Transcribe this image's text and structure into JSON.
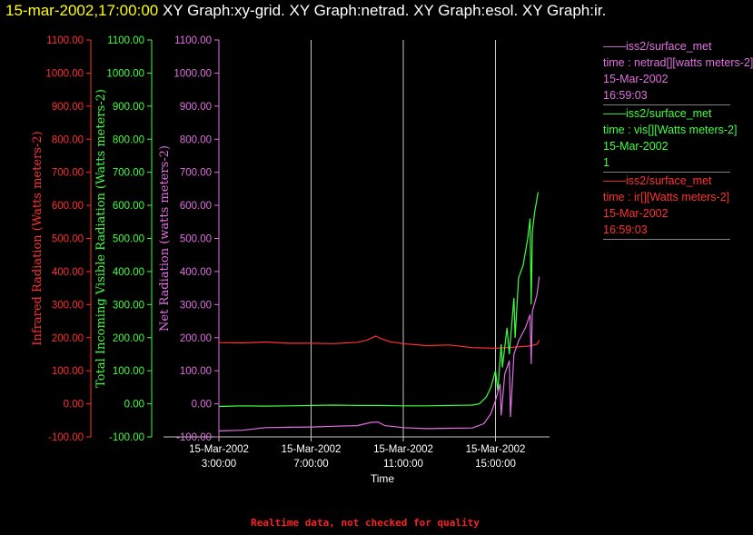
{
  "title": {
    "timestamp": "15-mar-2002,17:00:00",
    "graphs": "XY Graph:xy-grid.  XY Graph:netrad.  XY Graph:esol.  XY Graph:ir."
  },
  "legend": [
    {
      "source": "iss2/surface_met",
      "var": "time : netrad[][watts meters-2]",
      "date": "15-Mar-2002",
      "time": "16:59:03",
      "color": "#e070e0"
    },
    {
      "source": "iss2/surface_met",
      "var": "time : vis[][Watts meters-2]",
      "date": "15-Mar-2002",
      "time": "1",
      "color": "#40ff40"
    },
    {
      "source": "iss2/surface_met",
      "var": "time : ir[][Watts meters-2]",
      "date": "15-Mar-2002",
      "time": "16:59:03",
      "color": "#ff3030"
    }
  ],
  "footer": "Realtime data, not checked for quality",
  "chart_data": {
    "type": "line",
    "xlabel": "Time",
    "x_ticks": [
      {
        "date": "15-Mar-2002",
        "time": "3:00:00",
        "hour": 3
      },
      {
        "date": "15-Mar-2002",
        "time": "7:00:00",
        "hour": 7
      },
      {
        "date": "15-Mar-2002",
        "time": "11:00:00",
        "hour": 11
      },
      {
        "date": "15-Mar-2002",
        "time": "15:00:00",
        "hour": 15
      }
    ],
    "xlim_hours": [
      3,
      17
    ],
    "ylim": [
      -100,
      1100
    ],
    "y_ticks": [
      "-100.00",
      "0.00",
      "100.00",
      "200.00",
      "300.00",
      "400.00",
      "500.00",
      "600.00",
      "700.00",
      "800.00",
      "900.00",
      "1000.00",
      "1100.00"
    ],
    "y_values": [
      -100,
      0,
      100,
      200,
      300,
      400,
      500,
      600,
      700,
      800,
      900,
      1000,
      1100
    ],
    "axes": [
      {
        "label": "Infrared Radiation (Watts meters-2)",
        "color": "#ff3030"
      },
      {
        "label": "Total Incoming Visible Radiation (Watts meters-2)",
        "color": "#40ff40"
      },
      {
        "label": "Net Radiation (watts meters-2)",
        "color": "#e070e0"
      }
    ],
    "grid": true,
    "series": [
      {
        "key": "ir",
        "color": "#ff3030",
        "points": [
          [
            3,
            185
          ],
          [
            4,
            184
          ],
          [
            5,
            187
          ],
          [
            6,
            183
          ],
          [
            7,
            183
          ],
          [
            8,
            182
          ],
          [
            9,
            186
          ],
          [
            9.4,
            192
          ],
          [
            9.8,
            205
          ],
          [
            10.0,
            198
          ],
          [
            10.4,
            188
          ],
          [
            11,
            182
          ],
          [
            12,
            176
          ],
          [
            13,
            178
          ],
          [
            14,
            170
          ],
          [
            15,
            168
          ],
          [
            15.5,
            170
          ],
          [
            16,
            172
          ],
          [
            16.5,
            175
          ],
          [
            16.8,
            180
          ],
          [
            16.9,
            192
          ]
        ]
      },
      {
        "key": "vis",
        "color": "#40ff40",
        "points": [
          [
            3,
            -8
          ],
          [
            4,
            -6
          ],
          [
            5,
            -7
          ],
          [
            6,
            -6
          ],
          [
            7,
            -5
          ],
          [
            8,
            -4
          ],
          [
            9,
            -5
          ],
          [
            10,
            -5
          ],
          [
            11,
            -6
          ],
          [
            12,
            -6
          ],
          [
            13,
            -5
          ],
          [
            14,
            -4
          ],
          [
            14.3,
            0
          ],
          [
            14.6,
            20
          ],
          [
            14.8,
            50
          ],
          [
            15.0,
            100
          ],
          [
            15.1,
            40
          ],
          [
            15.25,
            180
          ],
          [
            15.3,
            110
          ],
          [
            15.5,
            230
          ],
          [
            15.6,
            150
          ],
          [
            15.8,
            320
          ],
          [
            15.85,
            200
          ],
          [
            16.0,
            380
          ],
          [
            16.2,
            420
          ],
          [
            16.4,
            500
          ],
          [
            16.5,
            560
          ],
          [
            16.55,
            300
          ],
          [
            16.6,
            520
          ],
          [
            16.7,
            580
          ],
          [
            16.8,
            620
          ],
          [
            16.85,
            640
          ]
        ]
      },
      {
        "key": "netrad",
        "color": "#e070e0",
        "points": [
          [
            3,
            -82
          ],
          [
            4,
            -80
          ],
          [
            5,
            -72
          ],
          [
            6,
            -71
          ],
          [
            7,
            -70
          ],
          [
            8,
            -68
          ],
          [
            9,
            -66
          ],
          [
            9.6,
            -56
          ],
          [
            9.9,
            -55
          ],
          [
            10.2,
            -66
          ],
          [
            11,
            -72
          ],
          [
            12,
            -75
          ],
          [
            13,
            -74
          ],
          [
            14,
            -73
          ],
          [
            14.5,
            -60
          ],
          [
            14.8,
            -30
          ],
          [
            15.0,
            10
          ],
          [
            15.2,
            60
          ],
          [
            15.25,
            -35
          ],
          [
            15.4,
            90
          ],
          [
            15.6,
            130
          ],
          [
            15.65,
            -40
          ],
          [
            15.8,
            150
          ],
          [
            16.0,
            190
          ],
          [
            16.3,
            230
          ],
          [
            16.5,
            270
          ],
          [
            16.55,
            120
          ],
          [
            16.6,
            280
          ],
          [
            16.8,
            330
          ],
          [
            16.9,
            385
          ]
        ]
      }
    ]
  }
}
